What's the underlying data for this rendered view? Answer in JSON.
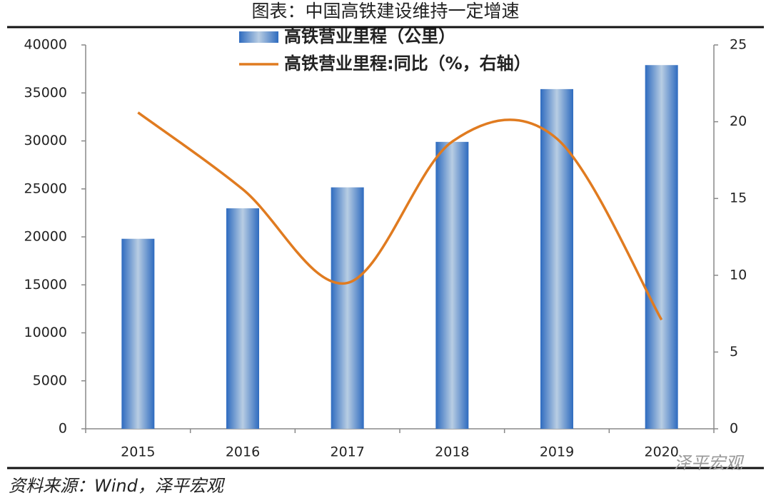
{
  "chart_data": {
    "type": "combo",
    "title": "图表：中国高铁建设维持一定增速",
    "source": "资料来源：Wind，泽平宏观",
    "watermark": "泽平宏观",
    "categories": [
      "2015",
      "2016",
      "2017",
      "2018",
      "2019",
      "2020"
    ],
    "series": [
      {
        "name": "高铁营业里程（公里）",
        "type": "bar",
        "color": "#2e6bbf",
        "values": [
          19800,
          22980,
          25160,
          29900,
          35400,
          37900
        ]
      },
      {
        "name": "高铁营业里程:同比（%，右轴）",
        "type": "line",
        "axis": "y2",
        "color": "#e07b20",
        "values": [
          20.6,
          15.6,
          9.5,
          18.7,
          18.9,
          7.1
        ]
      }
    ],
    "ylim": [
      0,
      40000
    ],
    "yticks": [
      0,
      5000,
      10000,
      15000,
      20000,
      25000,
      30000,
      35000,
      40000
    ],
    "y2lim": [
      0,
      25
    ],
    "y2ticks": [
      0,
      5,
      10,
      15,
      20,
      25
    ],
    "grid": false
  }
}
